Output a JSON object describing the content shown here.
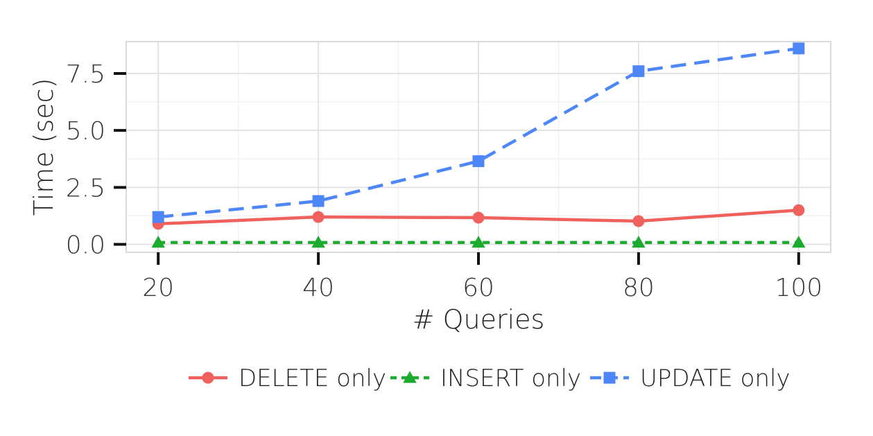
{
  "chart_data": {
    "type": "line",
    "x": [
      20,
      40,
      60,
      80,
      100
    ],
    "xlabel": "# Queries",
    "ylabel": "Time (sec)",
    "xlim": [
      16,
      104
    ],
    "ylim": [
      -0.35,
      8.9
    ],
    "x_ticks": [
      20,
      40,
      60,
      80,
      100
    ],
    "x_tick_labels": [
      "20",
      "40",
      "60",
      "80",
      "100"
    ],
    "y_ticks": [
      0.0,
      2.5,
      5.0,
      7.5
    ],
    "y_tick_labels": [
      "0.0",
      "2.5",
      "5.0",
      "7.5"
    ],
    "grid": true,
    "legend_position": "bottom",
    "series": [
      {
        "name": "DELETE only",
        "values": [
          0.9,
          1.2,
          1.17,
          1.02,
          1.5
        ],
        "color": "#F0605D",
        "marker": "circle",
        "line": "solid"
      },
      {
        "name": "INSERT only",
        "values": [
          0.08,
          0.08,
          0.08,
          0.08,
          0.08
        ],
        "color": "#1CAB2E",
        "marker": "triangle",
        "line": "dotted"
      },
      {
        "name": "UPDATE only",
        "values": [
          1.2,
          1.9,
          3.65,
          7.6,
          8.6
        ],
        "color": "#4D86F7",
        "marker": "square",
        "line": "dashed"
      }
    ]
  }
}
